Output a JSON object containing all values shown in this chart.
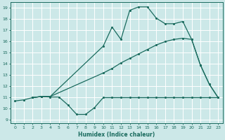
{
  "xlabel": "Humidex (Indice chaleur)",
  "bg_color": "#cce8e8",
  "grid_color": "#ffffff",
  "line_color": "#1a6b5e",
  "xlim": [
    -0.5,
    23.5
  ],
  "ylim": [
    8.7,
    19.5
  ],
  "xticks": [
    0,
    1,
    2,
    3,
    4,
    5,
    6,
    7,
    8,
    9,
    10,
    11,
    12,
    13,
    14,
    15,
    16,
    17,
    18,
    19,
    20,
    21,
    22,
    23
  ],
  "yticks": [
    9,
    10,
    11,
    12,
    13,
    14,
    15,
    16,
    17,
    18,
    19
  ],
  "line1_x": [
    0,
    1,
    2,
    3,
    4,
    5,
    6,
    7,
    8,
    9,
    10,
    11,
    12,
    13,
    14,
    15,
    16,
    17,
    18,
    19,
    20,
    21,
    22,
    23
  ],
  "line1_y": [
    10.7,
    10.8,
    11.0,
    11.1,
    11.05,
    11.05,
    10.35,
    9.5,
    9.5,
    10.1,
    11.0,
    11.0,
    11.0,
    11.0,
    11.0,
    11.0,
    11.0,
    11.0,
    11.0,
    11.0,
    11.0,
    11.0,
    11.0,
    11.0
  ],
  "line2_x": [
    2,
    3,
    4,
    10,
    11,
    12,
    13,
    14,
    15,
    16,
    17,
    18,
    19,
    20,
    21,
    22,
    23
  ],
  "line2_y": [
    11.0,
    11.1,
    11.1,
    13.2,
    13.6,
    14.1,
    14.5,
    14.9,
    15.3,
    15.7,
    16.0,
    16.2,
    16.3,
    16.2,
    13.9,
    12.2,
    11.0
  ],
  "line3_x": [
    2,
    3,
    4,
    10,
    11,
    12,
    13,
    14,
    15,
    16,
    17,
    18,
    19,
    20,
    21,
    22,
    23
  ],
  "line3_y": [
    11.0,
    11.1,
    11.1,
    15.6,
    17.3,
    16.2,
    18.8,
    19.1,
    19.1,
    18.1,
    17.6,
    17.6,
    17.8,
    16.2,
    13.9,
    12.2,
    11.0
  ]
}
